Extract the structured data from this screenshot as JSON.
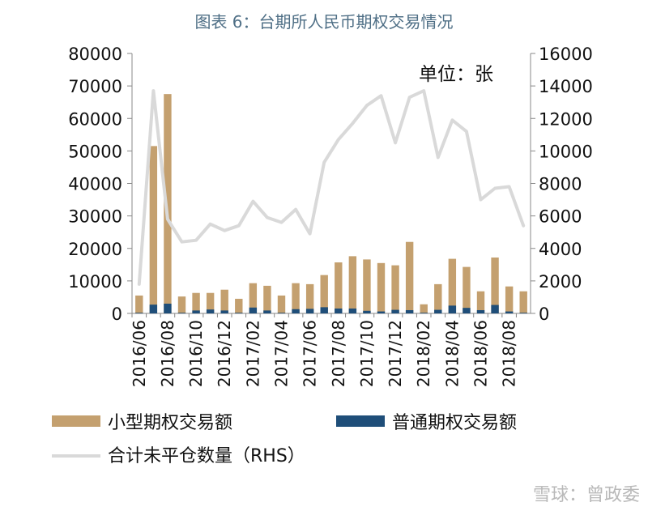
{
  "chart_data": {
    "type": "bar",
    "title": "图表 6：台期所人民币期权交易情况",
    "unit_label": "单位：张",
    "categories": [
      "2016/06",
      "2016/07",
      "2016/08",
      "2016/09",
      "2016/10",
      "2016/11",
      "2016/12",
      "2017/01",
      "2017/02",
      "2017/03",
      "2017/04",
      "2017/05",
      "2017/06",
      "2017/07",
      "2017/08",
      "2017/09",
      "2017/10",
      "2017/11",
      "2017/12",
      "2018/01",
      "2018/02",
      "2018/03",
      "2018/04",
      "2018/05",
      "2018/06",
      "2018/07",
      "2018/08",
      "2018/09"
    ],
    "x_tick_labels": [
      "2016/06",
      "2016/08",
      "2016/10",
      "2016/12",
      "2017/02",
      "2017/04",
      "2017/06",
      "2017/08",
      "2017/10",
      "2017/12",
      "2018/02",
      "2018/04",
      "2018/06",
      "2018/08"
    ],
    "series": [
      {
        "name": "小型期权交易额",
        "type": "bar",
        "axis": "left",
        "color": "#c4a06f",
        "values": [
          5500,
          51500,
          67500,
          5200,
          6300,
          6300,
          7300,
          4500,
          9300,
          8500,
          5500,
          9300,
          9000,
          11800,
          15700,
          17600,
          16600,
          15500,
          14800,
          22000,
          2800,
          9000,
          16800,
          14300,
          6800,
          17200,
          8300,
          6800
        ]
      },
      {
        "name": "普通期权交易额",
        "type": "bar",
        "axis": "left",
        "color": "#1f4e79",
        "values": [
          200,
          2700,
          3000,
          200,
          900,
          1200,
          900,
          200,
          1800,
          900,
          200,
          1300,
          1400,
          1900,
          1500,
          1500,
          800,
          600,
          1100,
          1000,
          200,
          1100,
          2400,
          1700,
          1000,
          2600,
          600,
          200
        ]
      },
      {
        "name": "合计未平仓数量（RHS）",
        "type": "line",
        "axis": "right",
        "color": "#d9d9d9",
        "values": [
          1800,
          13700,
          5800,
          4400,
          4500,
          5500,
          5100,
          5400,
          6900,
          5900,
          5600,
          6400,
          4900,
          9300,
          10700,
          11700,
          12800,
          13400,
          10500,
          13300,
          13700,
          9600,
          11900,
          11200,
          7000,
          7700,
          7800,
          5400
        ]
      }
    ],
    "ylim_left": [
      0,
      80000
    ],
    "ylim_right": [
      0,
      16000
    ],
    "yticks_left": [
      "0",
      "10000",
      "20000",
      "30000",
      "40000",
      "50000",
      "60000",
      "70000",
      "80000"
    ],
    "yticks_right": [
      "0",
      "2000",
      "4000",
      "6000",
      "8000",
      "10000",
      "12000",
      "14000",
      "16000"
    ],
    "grid": false,
    "legend_placement": "bottom"
  },
  "watermark": "雪球：曾政委"
}
